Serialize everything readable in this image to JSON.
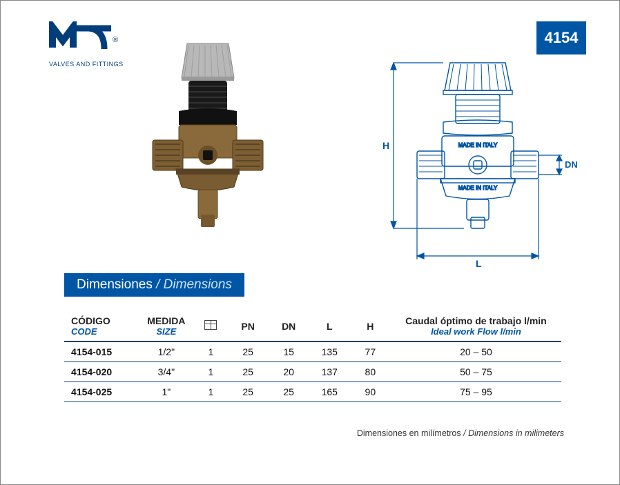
{
  "logo": {
    "tagline": "VALVES AND FITTINGS",
    "color": "#003d7a"
  },
  "product_code": "4154",
  "section_title": {
    "es": "Dimensiones",
    "en": "Dimensions"
  },
  "drawing": {
    "made_in_text": "MADE IN ITALY",
    "dim_labels": {
      "h": "H",
      "l": "L",
      "dn": "DN"
    },
    "dim_color": "#0055a5",
    "line_color": "#0055a5"
  },
  "table": {
    "columns": [
      {
        "es": "CÓDIGO",
        "en": "CODE",
        "cls": "col-code"
      },
      {
        "es": "MEDIDA",
        "en": "SIZE",
        "cls": "col-size"
      },
      {
        "type": "boxicon",
        "cls": "col-box"
      },
      {
        "es": "PN",
        "cls": "col-num"
      },
      {
        "es": "DN",
        "cls": "col-num"
      },
      {
        "es": "L",
        "cls": "col-num"
      },
      {
        "es": "H",
        "cls": "col-num"
      },
      {
        "es": "Caudal óptimo de trabajo l/min",
        "en": "Ideal work Flow l/min",
        "cls": "col-flow"
      }
    ],
    "rows": [
      {
        "code": "4154-015",
        "size": "1/2\"",
        "box": "1",
        "pn": "25",
        "dn": "15",
        "l": "135",
        "h": "77",
        "flow": "20 – 50"
      },
      {
        "code": "4154-020",
        "size": "3/4\"",
        "box": "1",
        "pn": "25",
        "dn": "20",
        "l": "137",
        "h": "80",
        "flow": "50 – 75"
      },
      {
        "code": "4154-025",
        "size": "1\"",
        "box": "1",
        "pn": "25",
        "dn": "25",
        "l": "165",
        "h": "90",
        "flow": "75 – 95"
      }
    ]
  },
  "footnote": {
    "es": "Dimensiones en milímetros",
    "en": "Dimensions in milimeters"
  }
}
